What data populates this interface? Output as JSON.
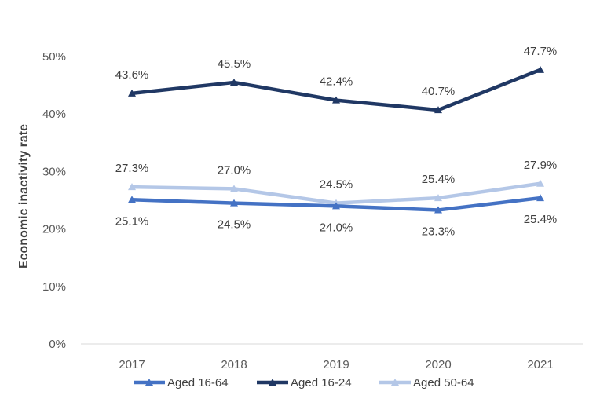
{
  "chart_data": {
    "type": "line",
    "title": "",
    "xlabel": "",
    "ylabel": "Economic inactivity rate",
    "categories": [
      "2017",
      "2018",
      "2019",
      "2020",
      "2021"
    ],
    "ylim": [
      0,
      50
    ],
    "yticks": [
      0,
      10,
      20,
      30,
      40,
      50
    ],
    "ytick_labels": [
      "0%",
      "10%",
      "20%",
      "30%",
      "40%",
      "50%"
    ],
    "grid": false,
    "legend_position": "bottom",
    "series": [
      {
        "name": "Aged 16-64",
        "color": "#4472C4",
        "values": [
          25.1,
          24.5,
          24.0,
          23.3,
          25.4
        ],
        "labels": [
          "25.1%",
          "24.5%",
          "24.0%",
          "23.3%",
          "25.4%"
        ],
        "label_position": "below"
      },
      {
        "name": "Aged 16-24",
        "color": "#203864",
        "values": [
          43.6,
          45.5,
          42.4,
          40.7,
          47.7
        ],
        "labels": [
          "43.6%",
          "45.5%",
          "42.4%",
          "40.7%",
          "47.7%"
        ],
        "label_position": "above"
      },
      {
        "name": "Aged 50-64",
        "color": "#B4C7E7",
        "values": [
          27.3,
          27.0,
          24.5,
          25.4,
          27.9
        ],
        "labels": [
          "27.3%",
          "27.0%",
          "24.5%",
          "25.4%",
          "27.9%"
        ],
        "label_position": "above"
      }
    ]
  }
}
